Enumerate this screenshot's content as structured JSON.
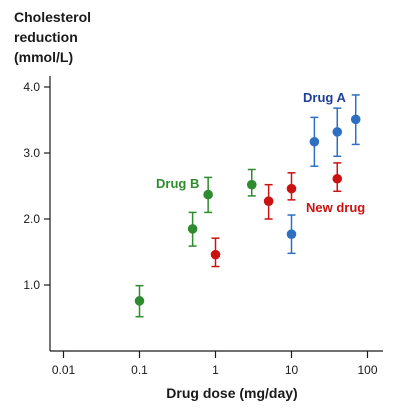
{
  "chart_data": {
    "type": "scatter",
    "title": "",
    "ylabel_lines": [
      "Cholesterol",
      "reduction",
      "(mmol/L)"
    ],
    "xlabel": "Drug dose (mg/day)",
    "xscale": "log",
    "xlim": [
      0.01,
      100
    ],
    "ylim": [
      0,
      4.0
    ],
    "x_ticks": [
      {
        "value": 0.01,
        "label": "0.01"
      },
      {
        "value": 0.1,
        "label": "0.1"
      },
      {
        "value": 1,
        "label": "1"
      },
      {
        "value": 10,
        "label": "10"
      },
      {
        "value": 100,
        "label": "100"
      }
    ],
    "y_ticks": [
      {
        "value": 1.0,
        "label": "1.0"
      },
      {
        "value": 2.0,
        "label": "2.0"
      },
      {
        "value": 3.0,
        "label": "3.0"
      },
      {
        "value": 4.0,
        "label": "4.0"
      }
    ],
    "grid": false,
    "error_bars": true,
    "series": [
      {
        "name": "Drug A",
        "color": "#2e6fc4",
        "label_color": "#1f3f9a",
        "points": [
          {
            "x": 10,
            "y": 1.77,
            "lo": 1.48,
            "hi": 2.06
          },
          {
            "x": 20,
            "y": 3.17,
            "lo": 2.8,
            "hi": 3.54
          },
          {
            "x": 40,
            "y": 3.32,
            "lo": 2.95,
            "hi": 3.68
          },
          {
            "x": 70,
            "y": 3.51,
            "lo": 3.13,
            "hi": 3.88
          }
        ]
      },
      {
        "name": "Drug B",
        "color": "#2e8b2e",
        "label_color": "#2e8b2e",
        "points": [
          {
            "x": 0.1,
            "y": 0.76,
            "lo": 0.52,
            "hi": 0.99
          },
          {
            "x": 0.5,
            "y": 1.85,
            "lo": 1.59,
            "hi": 2.1
          },
          {
            "x": 0.8,
            "y": 2.37,
            "lo": 2.1,
            "hi": 2.63
          },
          {
            "x": 3,
            "y": 2.52,
            "lo": 2.35,
            "hi": 2.75
          }
        ]
      },
      {
        "name": "New drug",
        "color": "#cc1111",
        "label_color": "#cc1111",
        "points": [
          {
            "x": 1,
            "y": 1.46,
            "lo": 1.28,
            "hi": 1.71
          },
          {
            "x": 5,
            "y": 2.27,
            "lo": 2.0,
            "hi": 2.52
          },
          {
            "x": 10,
            "y": 2.46,
            "lo": 2.29,
            "hi": 2.7
          },
          {
            "x": 40,
            "y": 2.61,
            "lo": 2.42,
            "hi": 2.85
          }
        ]
      }
    ]
  }
}
